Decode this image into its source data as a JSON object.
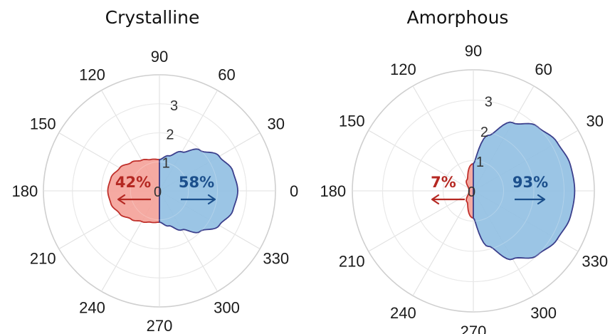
{
  "chart_data": [
    {
      "type": "polar-area",
      "title": "Crystalline",
      "angle_ticks": [
        "0",
        "30",
        "60",
        "90",
        "120",
        "150",
        "180",
        "210",
        "240",
        "270",
        "300",
        "330"
      ],
      "radius_ticks": [
        "0",
        "1",
        "2",
        "3"
      ],
      "rlim": [
        0,
        4
      ],
      "grid": true,
      "series": [
        {
          "side": "left",
          "percent_label": "42%",
          "color": "#f4a39a",
          "edge": "#c0302b",
          "text_color": "#b52822",
          "r_angle_deg": [
            90,
            105,
            120,
            135,
            150,
            165,
            180,
            195,
            210,
            225,
            240,
            255,
            270
          ],
          "r": [
            1.08,
            1.12,
            1.22,
            1.38,
            1.58,
            1.73,
            1.78,
            1.73,
            1.58,
            1.38,
            1.22,
            1.12,
            1.08
          ]
        },
        {
          "side": "right",
          "percent_label": "58%",
          "color": "#92c0e3",
          "edge": "#3b3f8c",
          "text_color": "#1b4f8c",
          "r_angle_deg": [
            -90,
            -75,
            -60,
            -45,
            -30,
            -15,
            0,
            15,
            30,
            45,
            60,
            75,
            90
          ],
          "r": [
            1.08,
            1.25,
            1.55,
            1.98,
            2.38,
            2.62,
            2.7,
            2.62,
            2.38,
            1.98,
            1.55,
            1.25,
            1.08
          ]
        }
      ]
    },
    {
      "type": "polar-area",
      "title": "Amorphous",
      "angle_ticks": [
        "0",
        "30",
        "60",
        "90",
        "120",
        "150",
        "180",
        "210",
        "240",
        "270",
        "300",
        "330"
      ],
      "radius_ticks": [
        "0",
        "1",
        "2",
        "3"
      ],
      "rlim": [
        0,
        4
      ],
      "grid": true,
      "series": [
        {
          "side": "left",
          "percent_label": "7%",
          "color": "#f4a39a",
          "edge": "#c0302b",
          "text_color": "#b52822",
          "r_angle_deg": [
            90,
            120,
            150,
            165,
            180,
            195,
            210,
            240,
            270
          ],
          "r": [
            0.9,
            0.42,
            0.18,
            0.14,
            0.13,
            0.14,
            0.18,
            0.42,
            0.9
          ]
        },
        {
          "side": "right",
          "percent_label": "93%",
          "color": "#92c0e3",
          "edge": "#3b3f8c",
          "text_color": "#1b4f8c",
          "r_angle_deg": [
            -90,
            -75,
            -60,
            -45,
            -30,
            -15,
            0,
            15,
            30,
            45,
            60,
            75,
            90
          ],
          "r": [
            0.9,
            1.9,
            2.6,
            3.0,
            3.2,
            3.32,
            3.35,
            3.32,
            3.2,
            3.0,
            2.6,
            1.9,
            0.9
          ]
        }
      ]
    }
  ]
}
